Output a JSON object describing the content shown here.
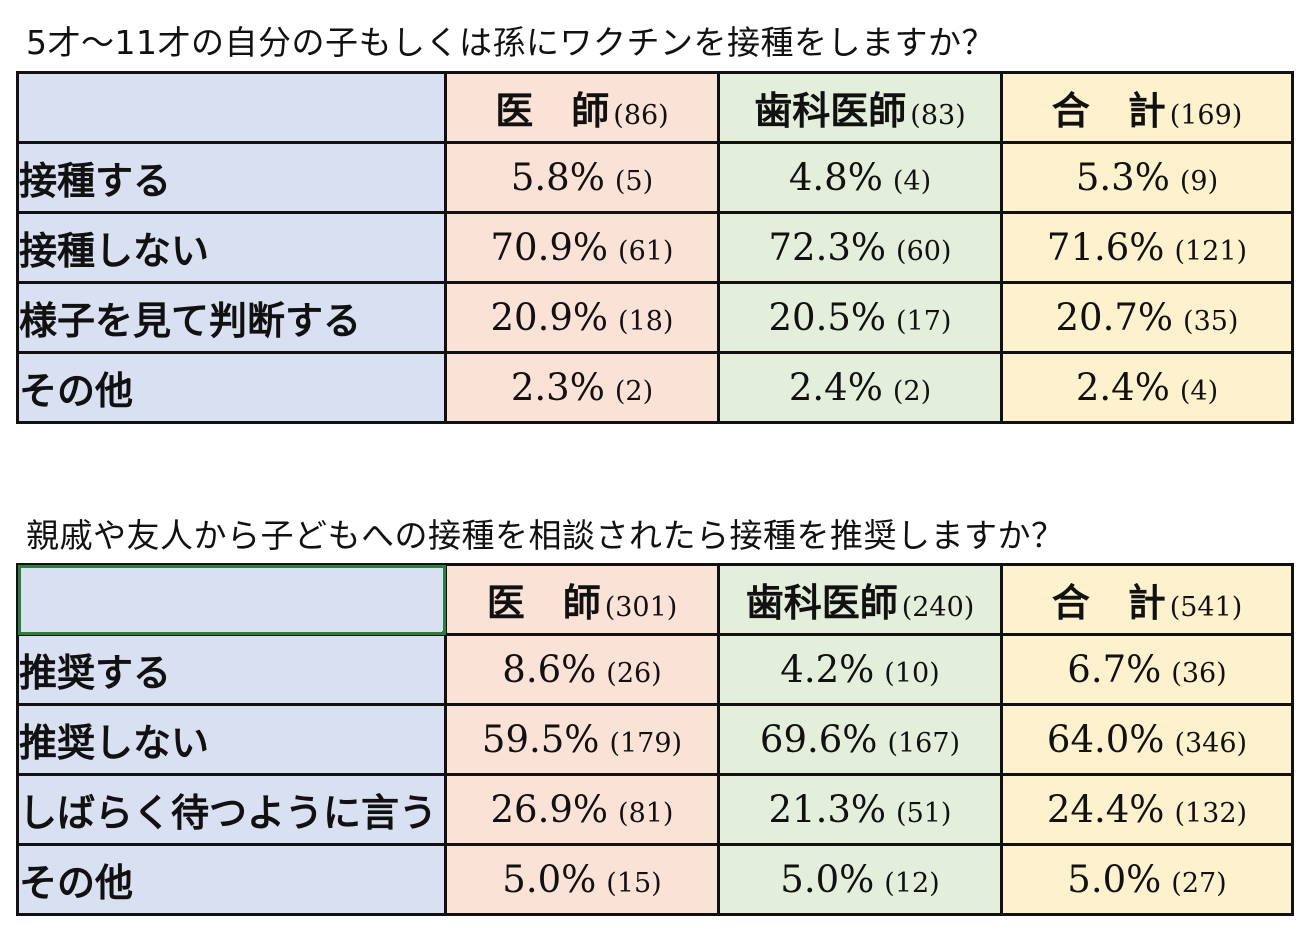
{
  "q1": {
    "title": "5才～11才の自分の子もしくは孫にワクチンを接種をしますか？",
    "headers": [
      {
        "name": "医　師",
        "n": "(86)"
      },
      {
        "name": "歯科医師",
        "n": "(83)"
      },
      {
        "name": "合　計",
        "n": "(169)"
      }
    ],
    "rows": [
      {
        "label": "接種する",
        "cells": [
          {
            "pct": "5.8%",
            "count": "(5)"
          },
          {
            "pct": "4.8%",
            "count": "(4)"
          },
          {
            "pct": "5.3%",
            "count": "(9)"
          }
        ]
      },
      {
        "label": "接種しない",
        "cells": [
          {
            "pct": "70.9%",
            "count": "(61)"
          },
          {
            "pct": "72.3%",
            "count": "(60)"
          },
          {
            "pct": "71.6%",
            "count": "(121)"
          }
        ]
      },
      {
        "label": "様子を見て判断する",
        "cells": [
          {
            "pct": "20.9%",
            "count": "(18)"
          },
          {
            "pct": "20.5%",
            "count": "(17)"
          },
          {
            "pct": "20.7%",
            "count": "(35)"
          }
        ]
      },
      {
        "label": "その他",
        "cells": [
          {
            "pct": "2.3%",
            "count": "(2)"
          },
          {
            "pct": "2.4%",
            "count": "(2)"
          },
          {
            "pct": "2.4%",
            "count": "(4)"
          }
        ]
      }
    ]
  },
  "q2": {
    "title": "親戚や友人から子どもへの接種を相談されたら接種を推奨しますか？",
    "headers": [
      {
        "name": "医　師",
        "n": "(301)"
      },
      {
        "name": "歯科医師",
        "n": "(240)"
      },
      {
        "name": "合　計",
        "n": "(541)"
      }
    ],
    "rows": [
      {
        "label": "推奨する",
        "cells": [
          {
            "pct": "8.6%",
            "count": "(26)"
          },
          {
            "pct": "4.2%",
            "count": "(10)"
          },
          {
            "pct": "6.7%",
            "count": "(36)"
          }
        ]
      },
      {
        "label": "推奨しない",
        "cells": [
          {
            "pct": "59.5%",
            "count": "(179)"
          },
          {
            "pct": "69.6%",
            "count": "(167)"
          },
          {
            "pct": "64.0%",
            "count": "(346)"
          }
        ]
      },
      {
        "label": "しばらく待つように言う",
        "cells": [
          {
            "pct": "26.9%",
            "count": "(81)"
          },
          {
            "pct": "21.3%",
            "count": "(51)"
          },
          {
            "pct": "24.4%",
            "count": "(132)"
          }
        ]
      },
      {
        "label": "その他",
        "cells": [
          {
            "pct": "5.0%",
            "count": "(15)"
          },
          {
            "pct": "5.0%",
            "count": "(12)"
          },
          {
            "pct": "5.0%",
            "count": "(27)"
          }
        ]
      }
    ]
  },
  "colors": {
    "label_bg": "#d9e0f1",
    "doctor_bg": "#fbe2d7",
    "dentist_bg": "#e3efda",
    "total_bg": "#fdf2cd",
    "selection": "#2e7d3c"
  }
}
